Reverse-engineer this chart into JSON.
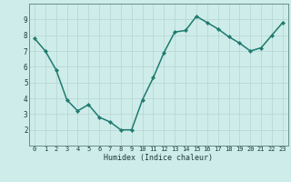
{
  "x": [
    0,
    1,
    2,
    3,
    4,
    5,
    6,
    7,
    8,
    9,
    10,
    11,
    12,
    13,
    14,
    15,
    16,
    17,
    18,
    19,
    20,
    21,
    22,
    23
  ],
  "y": [
    7.8,
    7.0,
    5.8,
    3.9,
    3.2,
    3.6,
    2.8,
    2.5,
    2.0,
    2.0,
    3.9,
    5.3,
    6.9,
    8.2,
    8.3,
    9.2,
    8.8,
    8.4,
    7.9,
    7.5,
    7.0,
    7.2,
    8.0,
    8.8
  ],
  "xlabel": "Humidex (Indice chaleur)",
  "xlim_min": -0.5,
  "xlim_max": 23.5,
  "ylim_min": 1.0,
  "ylim_max": 10.0,
  "yticks": [
    2,
    3,
    4,
    5,
    6,
    7,
    8,
    9
  ],
  "xticks": [
    0,
    1,
    2,
    3,
    4,
    5,
    6,
    7,
    8,
    9,
    10,
    11,
    12,
    13,
    14,
    15,
    16,
    17,
    18,
    19,
    20,
    21,
    22,
    23
  ],
  "line_color": "#1e7b6e",
  "marker_color": "#1e7b6e",
  "bg_color": "#ceecea",
  "grid_color": "#b8d8d5",
  "spine_color": "#6a8f8c",
  "font_color": "#1a3a38",
  "tick_fontsize": 5.0,
  "xlabel_fontsize": 6.0,
  "linewidth": 1.1,
  "markersize": 2.2
}
